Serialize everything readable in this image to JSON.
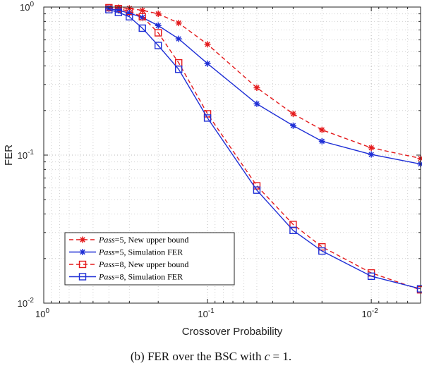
{
  "chart_data": {
    "type": "line",
    "xlabel": "Crossover Probability",
    "ylabel": "FER",
    "xscale": "log-reversed",
    "yscale": "log",
    "xlim": [
      1.0,
      0.005
    ],
    "ylim": [
      0.01,
      1.0
    ],
    "grid": true,
    "x_ticks": [
      {
        "value": 1.0,
        "base": "10",
        "exp": "0"
      },
      {
        "value": 0.1,
        "base": "10",
        "exp": "-1"
      },
      {
        "value": 0.01,
        "base": "10",
        "exp": "-2"
      }
    ],
    "y_ticks": [
      {
        "value": 1.0,
        "base": "10",
        "exp": "0"
      },
      {
        "value": 0.1,
        "base": "10",
        "exp": "-1"
      },
      {
        "value": 0.01,
        "base": "10",
        "exp": "-2"
      }
    ],
    "legend_position": "bottom-left",
    "series": [
      {
        "name_italic": "Pass",
        "name_rest": "=5, New upper bound",
        "color": "#e41a1c",
        "line_style": "dashed",
        "marker": "star",
        "x": [
          0.4,
          0.35,
          0.3,
          0.25,
          0.2,
          0.15,
          0.1,
          0.05,
          0.03,
          0.02,
          0.01,
          0.005
        ],
        "y": [
          0.995,
          0.99,
          0.98,
          0.95,
          0.9,
          0.78,
          0.56,
          0.285,
          0.19,
          0.148,
          0.112,
          0.095
        ]
      },
      {
        "name_italic": "Pass",
        "name_rest": "=5, Simulation FER",
        "color": "#1f2fd6",
        "line_style": "solid",
        "marker": "star",
        "x": [
          0.4,
          0.35,
          0.3,
          0.25,
          0.2,
          0.15,
          0.1,
          0.05,
          0.03,
          0.02,
          0.01,
          0.005
        ],
        "y": [
          0.975,
          0.95,
          0.91,
          0.85,
          0.75,
          0.61,
          0.415,
          0.222,
          0.158,
          0.124,
          0.101,
          0.087
        ]
      },
      {
        "name_italic": "Pass",
        "name_rest": "=8, New upper bound",
        "color": "#e41a1c",
        "line_style": "dashed",
        "marker": "square",
        "x": [
          0.4,
          0.35,
          0.3,
          0.25,
          0.2,
          0.15,
          0.1,
          0.05,
          0.03,
          0.02,
          0.01,
          0.005
        ],
        "y": [
          0.99,
          0.975,
          0.935,
          0.86,
          0.67,
          0.42,
          0.19,
          0.062,
          0.034,
          0.024,
          0.016,
          0.0123
        ]
      },
      {
        "name_italic": "Pass",
        "name_rest": "=8, Simulation FER",
        "color": "#1f2fd6",
        "line_style": "solid",
        "marker": "square",
        "x": [
          0.4,
          0.35,
          0.3,
          0.25,
          0.2,
          0.15,
          0.1,
          0.05,
          0.03,
          0.02,
          0.01,
          0.005
        ],
        "y": [
          0.96,
          0.92,
          0.86,
          0.72,
          0.55,
          0.38,
          0.178,
          0.058,
          0.031,
          0.0225,
          0.0152,
          0.0125
        ]
      }
    ]
  },
  "caption": {
    "prefix": "(b) FER over the BSC with ",
    "var": "c",
    "suffix": " = 1."
  }
}
